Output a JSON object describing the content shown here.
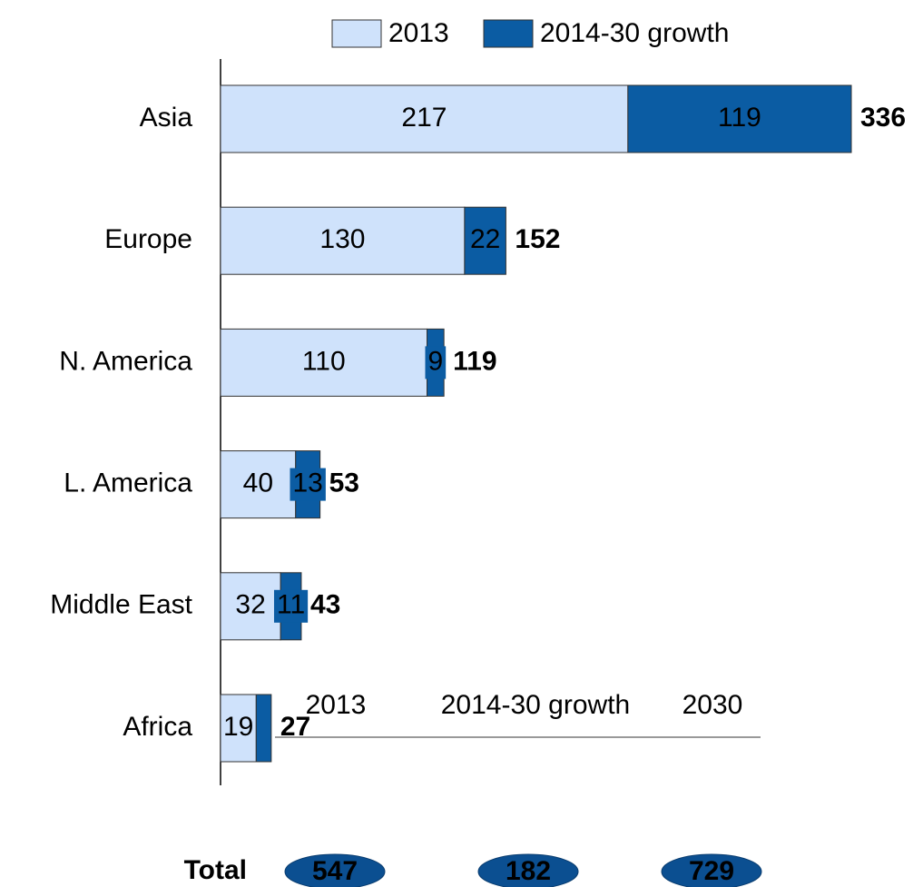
{
  "chart_data": {
    "type": "bar",
    "orientation": "horizontal",
    "stacked": true,
    "categories": [
      "Asia",
      "Europe",
      "N. America",
      "L. America",
      "Middle East",
      "Africa"
    ],
    "series": [
      {
        "name": "2013",
        "color": "#cfe2fb",
        "values": [
          217,
          130,
          110,
          40,
          32,
          19
        ]
      },
      {
        "name": "2014-30 growth",
        "color": "#0b5ca3",
        "values": [
          119,
          22,
          9,
          13,
          11,
          8
        ],
        "value_labels": [
          "119",
          "22",
          "9",
          "13",
          "11",
          null
        ]
      }
    ],
    "totals": [
      336,
      152,
      119,
      53,
      43,
      27
    ],
    "xlim": [
      0,
      336
    ],
    "summary": {
      "label": "Total",
      "columns": [
        {
          "header": "2013",
          "value": 547
        },
        {
          "header": "2014-30 growth",
          "value": 182
        },
        {
          "header": "2030",
          "value": 729
        }
      ]
    }
  }
}
